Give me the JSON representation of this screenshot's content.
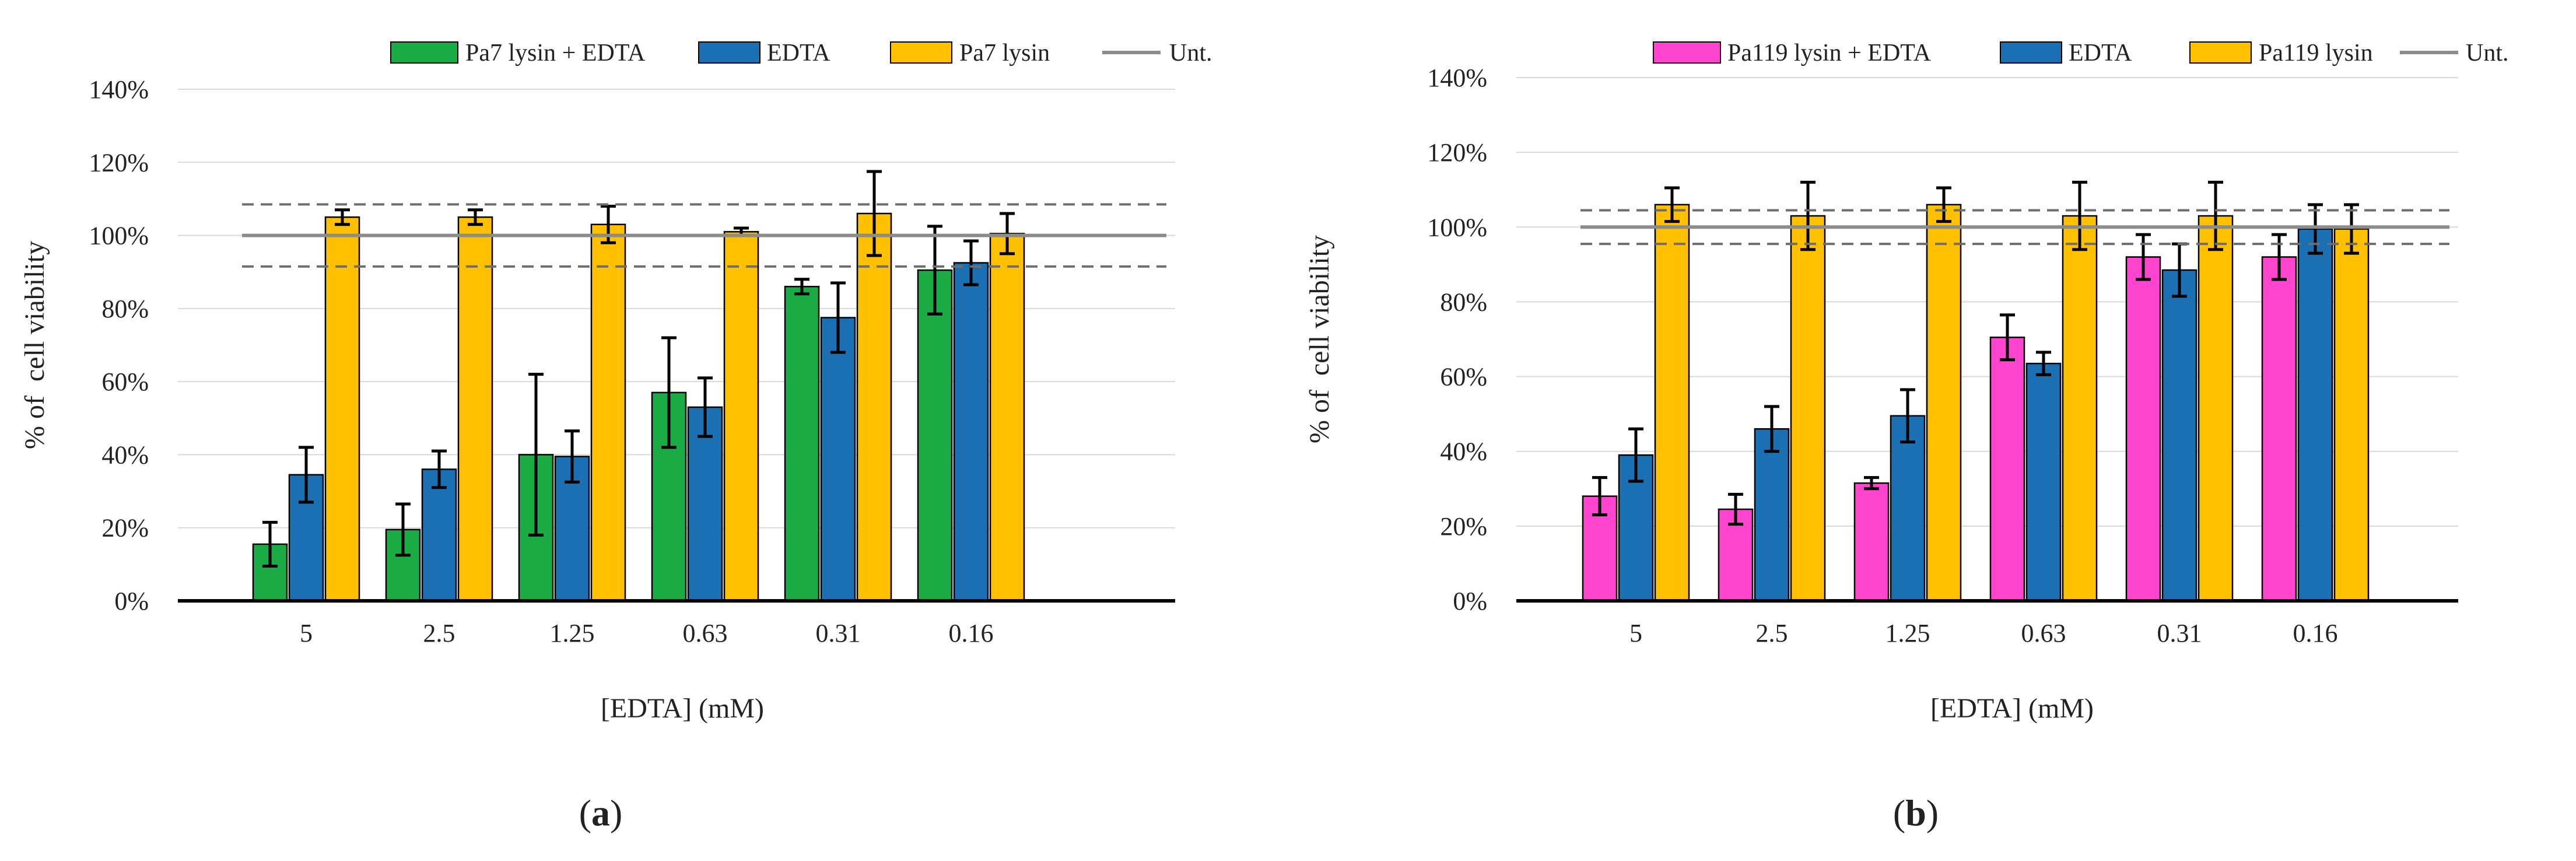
{
  "chart_data": [
    {
      "type": "bar",
      "panel_label": "a",
      "xlabel": "[EDTA] (mM)",
      "ylabel": "% of  cell viability",
      "ylim": [
        0,
        140
      ],
      "yticks": [
        0,
        20,
        40,
        60,
        80,
        100,
        120,
        140
      ],
      "tick_suffix": "%",
      "grid": true,
      "legend_position": "top-right",
      "categories": [
        "5",
        "2.5",
        "1.25",
        "0.63",
        "0.31",
        "0.16"
      ],
      "series": [
        {
          "name": "Pa7 lysin + EDTA",
          "color": "#1aab45",
          "values": [
            15.5,
            19.5,
            40,
            57,
            86,
            90.5
          ],
          "errors": [
            6,
            7,
            22,
            15,
            2,
            12
          ]
        },
        {
          "name": "EDTA",
          "color": "#1a70b3",
          "values": [
            34.5,
            36,
            39.5,
            53,
            77.5,
            92.5
          ],
          "errors": [
            7.5,
            5,
            7,
            8,
            9.5,
            6
          ]
        },
        {
          "name": "Pa7 lysin",
          "color": "#ffc000",
          "values": [
            105,
            105,
            103,
            101,
            106,
            100.5
          ],
          "errors": [
            2,
            2,
            5,
            1,
            11.5,
            5.5
          ]
        }
      ],
      "reference": {
        "name": "Unt.",
        "color": "#8c8c8c",
        "value": 100,
        "upper": 108.5,
        "lower": 91.5
      }
    },
    {
      "type": "bar",
      "panel_label": "b",
      "xlabel": "[EDTA] (mM)",
      "ylabel": "% of  cell viability",
      "ylim": [
        0,
        140
      ],
      "yticks": [
        0,
        20,
        40,
        60,
        80,
        100,
        120,
        140
      ],
      "tick_suffix": "%",
      "grid": true,
      "legend_position": "top-right",
      "categories": [
        "5",
        "2.5",
        "1.25",
        "0.63",
        "0.31",
        "0.16"
      ],
      "series": [
        {
          "name": "Pa119 lysin + EDTA",
          "color": "#ff45cf",
          "values": [
            28,
            24.5,
            31.5,
            70.5,
            92,
            92
          ],
          "errors": [
            5,
            4,
            1.5,
            6,
            6,
            6
          ]
        },
        {
          "name": "EDTA",
          "color": "#1a70b3",
          "values": [
            39,
            46,
            49.5,
            63.5,
            88.5,
            99.5
          ],
          "errors": [
            7,
            6,
            7,
            3,
            7,
            6.5
          ]
        },
        {
          "name": "Pa119 lysin",
          "color": "#ffc000",
          "values": [
            106,
            103,
            106,
            103,
            103,
            99.5
          ],
          "errors": [
            4.5,
            9,
            4.5,
            9,
            9,
            6.5
          ]
        }
      ],
      "reference": {
        "name": "Unt.",
        "color": "#8c8c8c",
        "value": 100,
        "upper": 104.5,
        "lower": 95.5
      }
    }
  ]
}
